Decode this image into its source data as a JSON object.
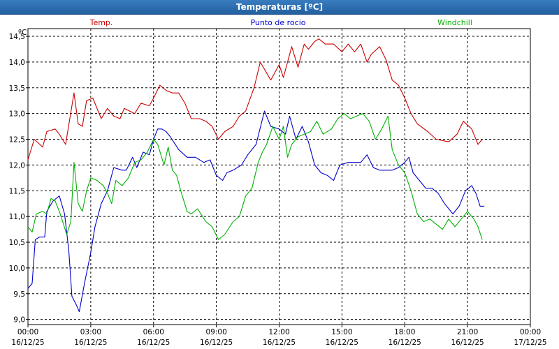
{
  "window": {
    "title": "Temperaturas [ºC]"
  },
  "colors": {
    "temp": "#cc0000",
    "dew": "#0000cc",
    "chill": "#00b000",
    "grid": "#000000"
  },
  "chart_data": {
    "type": "line",
    "title": "Temperaturas [ºC]",
    "ylabel": "ºC",
    "ylim": [
      8.9,
      14.65
    ],
    "xlim": [
      0,
      24
    ],
    "grid": true,
    "legend_placement": "top",
    "yticks": [
      {
        "value": 9.0,
        "label": "9,0"
      },
      {
        "value": 9.5,
        "label": "9,5"
      },
      {
        "value": 10.0,
        "label": "10,0"
      },
      {
        "value": 10.5,
        "label": "10,5"
      },
      {
        "value": 11.0,
        "label": "11,0"
      },
      {
        "value": 11.5,
        "label": "11,5"
      },
      {
        "value": 12.0,
        "label": "12,0"
      },
      {
        "value": 12.5,
        "label": "12,5"
      },
      {
        "value": 13.0,
        "label": "13,0"
      },
      {
        "value": 13.5,
        "label": "13,5"
      },
      {
        "value": 14.0,
        "label": "14,0"
      },
      {
        "value": 14.5,
        "label": "14,5"
      }
    ],
    "xticks": [
      {
        "value": 0,
        "time": "00:00",
        "date": "16/12/25"
      },
      {
        "value": 3,
        "time": "03:00",
        "date": "16/12/25"
      },
      {
        "value": 6,
        "time": "06:00",
        "date": "16/12/25"
      },
      {
        "value": 9,
        "time": "09:00",
        "date": "16/12/25"
      },
      {
        "value": 12,
        "time": "12:00",
        "date": "16/12/25"
      },
      {
        "value": 15,
        "time": "15:00",
        "date": "16/12/25"
      },
      {
        "value": 18,
        "time": "18:00",
        "date": "16/12/25"
      },
      {
        "value": 21,
        "time": "21:00",
        "date": "16/12/25"
      },
      {
        "value": 24,
        "time": "00:00",
        "date": "17/12/25"
      }
    ],
    "series": [
      {
        "name": "Temp.",
        "color": "#cc0000",
        "points": [
          [
            0,
            12.1
          ],
          [
            0.3,
            12.5
          ],
          [
            0.7,
            12.35
          ],
          [
            0.9,
            12.65
          ],
          [
            1.3,
            12.7
          ],
          [
            1.5,
            12.6
          ],
          [
            1.8,
            12.4
          ],
          [
            2.2,
            13.4
          ],
          [
            2.4,
            12.8
          ],
          [
            2.6,
            12.75
          ],
          [
            2.8,
            13.25
          ],
          [
            3.1,
            13.3
          ],
          [
            3.3,
            13.1
          ],
          [
            3.5,
            12.9
          ],
          [
            3.8,
            13.1
          ],
          [
            4.1,
            12.95
          ],
          [
            4.4,
            12.9
          ],
          [
            4.6,
            13.1
          ],
          [
            5.1,
            13.0
          ],
          [
            5.4,
            13.2
          ],
          [
            5.8,
            13.15
          ],
          [
            6.0,
            13.3
          ],
          [
            6.3,
            13.55
          ],
          [
            6.6,
            13.45
          ],
          [
            6.9,
            13.4
          ],
          [
            7.2,
            13.4
          ],
          [
            7.5,
            13.2
          ],
          [
            7.8,
            12.9
          ],
          [
            8.2,
            12.9
          ],
          [
            8.5,
            12.85
          ],
          [
            8.8,
            12.75
          ],
          [
            9.1,
            12.5
          ],
          [
            9.4,
            12.65
          ],
          [
            9.8,
            12.75
          ],
          [
            10.1,
            12.95
          ],
          [
            10.4,
            13.05
          ],
          [
            10.8,
            13.5
          ],
          [
            11.1,
            14.0
          ],
          [
            11.6,
            13.65
          ],
          [
            12.0,
            13.95
          ],
          [
            12.2,
            13.7
          ],
          [
            12.6,
            14.3
          ],
          [
            12.9,
            13.9
          ],
          [
            13.2,
            14.35
          ],
          [
            13.4,
            14.25
          ],
          [
            13.7,
            14.4
          ],
          [
            13.9,
            14.45
          ],
          [
            14.2,
            14.35
          ],
          [
            14.6,
            14.35
          ],
          [
            15.0,
            14.2
          ],
          [
            15.3,
            14.35
          ],
          [
            15.6,
            14.2
          ],
          [
            15.9,
            14.35
          ],
          [
            16.2,
            14.0
          ],
          [
            16.4,
            14.15
          ],
          [
            16.8,
            14.3
          ],
          [
            17.1,
            14.05
          ],
          [
            17.4,
            13.65
          ],
          [
            17.7,
            13.55
          ],
          [
            18.0,
            13.3
          ],
          [
            18.3,
            13.0
          ],
          [
            18.6,
            12.8
          ],
          [
            19.1,
            12.65
          ],
          [
            19.5,
            12.5
          ],
          [
            20.1,
            12.45
          ],
          [
            20.5,
            12.6
          ],
          [
            20.8,
            12.85
          ],
          [
            21.2,
            12.7
          ],
          [
            21.5,
            12.4
          ],
          [
            21.7,
            12.5
          ]
        ]
      },
      {
        "name": "Punto de rocio",
        "color": "#0000cc",
        "points": [
          [
            0,
            9.6
          ],
          [
            0.2,
            9.7
          ],
          [
            0.35,
            10.55
          ],
          [
            0.55,
            10.6
          ],
          [
            0.8,
            10.6
          ],
          [
            0.9,
            11.1
          ],
          [
            1.2,
            11.3
          ],
          [
            1.5,
            11.4
          ],
          [
            1.75,
            11.05
          ],
          [
            1.95,
            10.35
          ],
          [
            2.1,
            9.45
          ],
          [
            2.35,
            9.25
          ],
          [
            2.45,
            9.15
          ],
          [
            2.7,
            9.7
          ],
          [
            3.0,
            10.3
          ],
          [
            3.2,
            10.8
          ],
          [
            3.5,
            11.25
          ],
          [
            3.8,
            11.5
          ],
          [
            4.1,
            11.95
          ],
          [
            4.5,
            11.9
          ],
          [
            4.7,
            11.9
          ],
          [
            5.0,
            12.15
          ],
          [
            5.2,
            11.95
          ],
          [
            5.5,
            12.25
          ],
          [
            5.8,
            12.2
          ],
          [
            6.0,
            12.5
          ],
          [
            6.2,
            12.7
          ],
          [
            6.4,
            12.7
          ],
          [
            6.6,
            12.65
          ],
          [
            6.8,
            12.55
          ],
          [
            7.2,
            12.3
          ],
          [
            7.6,
            12.15
          ],
          [
            8.0,
            12.15
          ],
          [
            8.4,
            12.05
          ],
          [
            8.7,
            12.1
          ],
          [
            9.0,
            11.8
          ],
          [
            9.3,
            11.7
          ],
          [
            9.5,
            11.85
          ],
          [
            9.8,
            11.9
          ],
          [
            10.2,
            12.0
          ],
          [
            10.5,
            12.2
          ],
          [
            10.9,
            12.4
          ],
          [
            11.3,
            13.05
          ],
          [
            11.6,
            12.75
          ],
          [
            12.0,
            12.7
          ],
          [
            12.3,
            12.6
          ],
          [
            12.5,
            12.95
          ],
          [
            12.8,
            12.5
          ],
          [
            13.1,
            12.75
          ],
          [
            13.4,
            12.45
          ],
          [
            13.7,
            12.0
          ],
          [
            14.0,
            11.85
          ],
          [
            14.3,
            11.8
          ],
          [
            14.6,
            11.7
          ],
          [
            14.9,
            12.0
          ],
          [
            15.3,
            12.05
          ],
          [
            15.6,
            12.05
          ],
          [
            15.9,
            12.05
          ],
          [
            16.2,
            12.2
          ],
          [
            16.5,
            11.95
          ],
          [
            16.8,
            11.9
          ],
          [
            17.1,
            11.9
          ],
          [
            17.4,
            11.9
          ],
          [
            17.7,
            11.95
          ],
          [
            18.0,
            12.05
          ],
          [
            18.2,
            12.15
          ],
          [
            18.4,
            11.85
          ],
          [
            18.7,
            11.7
          ],
          [
            19.0,
            11.55
          ],
          [
            19.3,
            11.55
          ],
          [
            19.6,
            11.45
          ],
          [
            19.9,
            11.25
          ],
          [
            20.3,
            11.05
          ],
          [
            20.6,
            11.2
          ],
          [
            20.9,
            11.5
          ],
          [
            21.2,
            11.6
          ],
          [
            21.4,
            11.45
          ],
          [
            21.6,
            11.2
          ],
          [
            21.8,
            11.2
          ]
        ]
      },
      {
        "name": "Windchill",
        "color": "#00b000",
        "points": [
          [
            0,
            10.8
          ],
          [
            0.2,
            10.7
          ],
          [
            0.4,
            11.05
          ],
          [
            0.7,
            11.1
          ],
          [
            0.9,
            11.05
          ],
          [
            1.1,
            11.35
          ],
          [
            1.3,
            11.3
          ],
          [
            1.5,
            11.1
          ],
          [
            1.7,
            10.85
          ],
          [
            1.85,
            10.65
          ],
          [
            2.05,
            10.9
          ],
          [
            2.2,
            12.05
          ],
          [
            2.4,
            11.25
          ],
          [
            2.6,
            11.1
          ],
          [
            2.8,
            11.5
          ],
          [
            3.0,
            11.75
          ],
          [
            3.3,
            11.7
          ],
          [
            3.6,
            11.6
          ],
          [
            3.8,
            11.45
          ],
          [
            4.0,
            11.25
          ],
          [
            4.2,
            11.7
          ],
          [
            4.5,
            11.6
          ],
          [
            4.8,
            11.75
          ],
          [
            5.1,
            12.05
          ],
          [
            5.4,
            12.1
          ],
          [
            5.7,
            12.25
          ],
          [
            6.0,
            12.5
          ],
          [
            6.2,
            12.4
          ],
          [
            6.5,
            12.0
          ],
          [
            6.7,
            12.35
          ],
          [
            6.9,
            11.9
          ],
          [
            7.1,
            11.8
          ],
          [
            7.3,
            11.5
          ],
          [
            7.6,
            11.1
          ],
          [
            7.8,
            11.05
          ],
          [
            8.1,
            11.15
          ],
          [
            8.5,
            10.9
          ],
          [
            8.8,
            10.8
          ],
          [
            9.1,
            10.55
          ],
          [
            9.4,
            10.65
          ],
          [
            9.8,
            10.9
          ],
          [
            10.1,
            11.0
          ],
          [
            10.4,
            11.4
          ],
          [
            10.7,
            11.55
          ],
          [
            11.0,
            12.05
          ],
          [
            11.2,
            12.25
          ],
          [
            11.4,
            12.4
          ],
          [
            11.7,
            12.75
          ],
          [
            12.0,
            12.5
          ],
          [
            12.2,
            12.75
          ],
          [
            12.4,
            12.15
          ],
          [
            12.6,
            12.4
          ],
          [
            12.9,
            12.55
          ],
          [
            13.2,
            12.6
          ],
          [
            13.5,
            12.65
          ],
          [
            13.8,
            12.85
          ],
          [
            14.1,
            12.6
          ],
          [
            14.5,
            12.7
          ],
          [
            14.8,
            12.9
          ],
          [
            15.1,
            13.0
          ],
          [
            15.4,
            12.9
          ],
          [
            15.7,
            12.95
          ],
          [
            16.0,
            13.0
          ],
          [
            16.3,
            12.85
          ],
          [
            16.6,
            12.5
          ],
          [
            16.9,
            12.7
          ],
          [
            17.2,
            12.95
          ],
          [
            17.4,
            12.3
          ],
          [
            17.7,
            12.0
          ],
          [
            18.0,
            11.85
          ],
          [
            18.3,
            11.5
          ],
          [
            18.6,
            11.05
          ],
          [
            18.9,
            10.9
          ],
          [
            19.2,
            10.95
          ],
          [
            19.5,
            10.85
          ],
          [
            19.8,
            10.75
          ],
          [
            20.1,
            10.95
          ],
          [
            20.4,
            10.8
          ],
          [
            20.7,
            10.95
          ],
          [
            21.0,
            11.1
          ],
          [
            21.3,
            10.95
          ],
          [
            21.5,
            10.8
          ],
          [
            21.7,
            10.55
          ]
        ]
      }
    ]
  }
}
